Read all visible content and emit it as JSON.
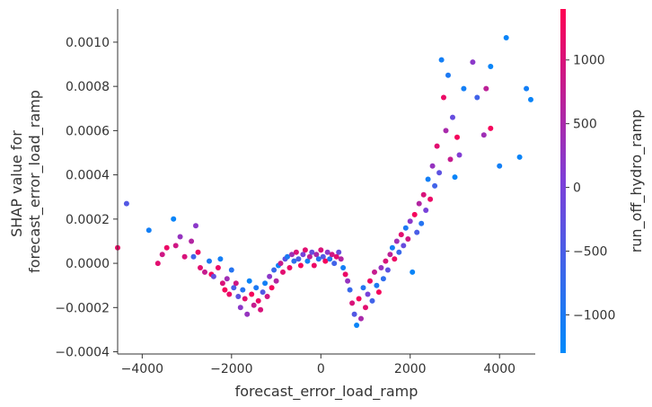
{
  "chart_data": {
    "type": "scatter",
    "title": "",
    "xlabel": "forecast_error_load_ramp",
    "ylabel": [
      "SHAP value for",
      "forecast_error_load_ramp"
    ],
    "xlim": [
      -4550,
      4800
    ],
    "ylim": [
      -0.00041,
      0.00115
    ],
    "xticks": [
      -4000,
      -2000,
      0,
      2000,
      4000
    ],
    "xtick_labels": [
      "−4000",
      "−2000",
      "0",
      "2000",
      "4000"
    ],
    "yticks": [
      -0.0004,
      -0.0002,
      0.0,
      0.0002,
      0.0004,
      0.0006,
      0.0008,
      0.001
    ],
    "ytick_labels": [
      "−0.0004",
      "−0.0002",
      "0.0000",
      "0.0002",
      "0.0004",
      "0.0006",
      "0.0008",
      "0.0010"
    ],
    "grid": false,
    "colorbar": {
      "label": "run_off_hydro_ramp",
      "range": [
        -1300,
        1400
      ],
      "ticks": [
        -1000,
        -500,
        0,
        500,
        1000
      ],
      "tick_labels": [
        "−1000",
        "−500",
        "0",
        "500",
        "1000"
      ],
      "colors": [
        "#008afb",
        "#7d3fd8",
        "#ff0052"
      ]
    },
    "points": [
      {
        "x": -4550,
        "y": 7e-05,
        "c": 1200
      },
      {
        "x": -4350,
        "y": 0.00027,
        "c": -400
      },
      {
        "x": -3850,
        "y": 0.00015,
        "c": -1100
      },
      {
        "x": -3650,
        "y": 0.0,
        "c": 1100
      },
      {
        "x": -3550,
        "y": 4e-05,
        "c": 900
      },
      {
        "x": -3450,
        "y": 7e-05,
        "c": 1200
      },
      {
        "x": -3300,
        "y": 0.0002,
        "c": -1200
      },
      {
        "x": -3250,
        "y": 8e-05,
        "c": 900
      },
      {
        "x": -3150,
        "y": 0.00012,
        "c": 300
      },
      {
        "x": -3050,
        "y": 3e-05,
        "c": 1000
      },
      {
        "x": -2900,
        "y": 0.0001,
        "c": 600
      },
      {
        "x": -2850,
        "y": 3e-05,
        "c": -600
      },
      {
        "x": -2800,
        "y": 0.00017,
        "c": 200
      },
      {
        "x": -2750,
        "y": 5e-05,
        "c": 1200
      },
      {
        "x": -2700,
        "y": -2e-05,
        "c": 1100
      },
      {
        "x": -2600,
        "y": -4e-05,
        "c": 800
      },
      {
        "x": -2500,
        "y": 1e-05,
        "c": -1000
      },
      {
        "x": -2450,
        "y": -5e-05,
        "c": 1300
      },
      {
        "x": -2400,
        "y": -6e-05,
        "c": -200
      },
      {
        "x": -2300,
        "y": -2e-05,
        "c": 1200
      },
      {
        "x": -2250,
        "y": 2e-05,
        "c": -1100
      },
      {
        "x": -2200,
        "y": -9e-05,
        "c": 1000
      },
      {
        "x": -2150,
        "y": -0.00012,
        "c": 1300
      },
      {
        "x": -2100,
        "y": -7e-05,
        "c": 400
      },
      {
        "x": -2050,
        "y": -0.00014,
        "c": 1200
      },
      {
        "x": -2000,
        "y": -3e-05,
        "c": -900
      },
      {
        "x": -1950,
        "y": -0.00011,
        "c": -500
      },
      {
        "x": -1900,
        "y": -9e-05,
        "c": 900
      },
      {
        "x": -1850,
        "y": -0.00015,
        "c": -300
      },
      {
        "x": -1800,
        "y": -0.0002,
        "c": 200
      },
      {
        "x": -1750,
        "y": -0.00012,
        "c": -900
      },
      {
        "x": -1700,
        "y": -0.00016,
        "c": 1100
      },
      {
        "x": -1650,
        "y": -0.00023,
        "c": 300
      },
      {
        "x": -1600,
        "y": -8e-05,
        "c": -1200
      },
      {
        "x": -1550,
        "y": -0.00014,
        "c": 1300
      },
      {
        "x": -1500,
        "y": -0.00019,
        "c": 800
      },
      {
        "x": -1450,
        "y": -0.00011,
        "c": -1000
      },
      {
        "x": -1400,
        "y": -0.00017,
        "c": 1200
      },
      {
        "x": -1350,
        "y": -0.00021,
        "c": 1000
      },
      {
        "x": -1300,
        "y": -0.00013,
        "c": -400
      },
      {
        "x": -1250,
        "y": -9e-05,
        "c": -1100
      },
      {
        "x": -1200,
        "y": -0.00015,
        "c": 900
      },
      {
        "x": -1150,
        "y": -6e-05,
        "c": 200
      },
      {
        "x": -1100,
        "y": -0.00011,
        "c": 1300
      },
      {
        "x": -1050,
        "y": -3e-05,
        "c": -700
      },
      {
        "x": -1000,
        "y": -8e-05,
        "c": 600
      },
      {
        "x": -950,
        "y": -1e-05,
        "c": -1200
      },
      {
        "x": -900,
        "y": 0.0,
        "c": 800
      },
      {
        "x": -850,
        "y": -4e-05,
        "c": 1100
      },
      {
        "x": -800,
        "y": 2e-05,
        "c": -300
      },
      {
        "x": -750,
        "y": 3e-05,
        "c": -1000
      },
      {
        "x": -700,
        "y": -2e-05,
        "c": 1200
      },
      {
        "x": -650,
        "y": 4e-05,
        "c": 400
      },
      {
        "x": -600,
        "y": 1e-05,
        "c": -800
      },
      {
        "x": -550,
        "y": 5e-05,
        "c": 1000
      },
      {
        "x": -500,
        "y": 2e-05,
        "c": -500
      },
      {
        "x": -450,
        "y": -1e-05,
        "c": 1300
      },
      {
        "x": -400,
        "y": 4e-05,
        "c": 0
      },
      {
        "x": -350,
        "y": 6e-05,
        "c": 1100
      },
      {
        "x": -300,
        "y": 1e-05,
        "c": -1100
      },
      {
        "x": -250,
        "y": 3e-05,
        "c": 700
      },
      {
        "x": -200,
        "y": 5e-05,
        "c": -200
      },
      {
        "x": -150,
        "y": -1e-05,
        "c": 1200
      },
      {
        "x": -100,
        "y": 4e-05,
        "c": 500
      },
      {
        "x": -50,
        "y": 2e-05,
        "c": -900
      },
      {
        "x": 0,
        "y": 6e-05,
        "c": 1000
      },
      {
        "x": 50,
        "y": 3e-05,
        "c": -400
      },
      {
        "x": 100,
        "y": 1e-05,
        "c": 1300
      },
      {
        "x": 150,
        "y": 5e-05,
        "c": 200
      },
      {
        "x": 200,
        "y": 2e-05,
        "c": -1000
      },
      {
        "x": 250,
        "y": 4e-05,
        "c": 900
      },
      {
        "x": 300,
        "y": 0.0,
        "c": -600
      },
      {
        "x": 350,
        "y": 3e-05,
        "c": 1100
      },
      {
        "x": 400,
        "y": 5e-05,
        "c": -200
      },
      {
        "x": 450,
        "y": 2e-05,
        "c": 600
      },
      {
        "x": 500,
        "y": -2e-05,
        "c": -1100
      },
      {
        "x": 550,
        "y": -5e-05,
        "c": 1200
      },
      {
        "x": 600,
        "y": -8e-05,
        "c": 300
      },
      {
        "x": 650,
        "y": -0.00012,
        "c": -700
      },
      {
        "x": 700,
        "y": -0.00018,
        "c": 1000
      },
      {
        "x": 750,
        "y": -0.00023,
        "c": -400
      },
      {
        "x": 800,
        "y": -0.00028,
        "c": -1200
      },
      {
        "x": 850,
        "y": -0.00016,
        "c": 1300
      },
      {
        "x": 900,
        "y": -0.00025,
        "c": 500
      },
      {
        "x": 950,
        "y": -0.00011,
        "c": -900
      },
      {
        "x": 1000,
        "y": -0.0002,
        "c": 1100
      },
      {
        "x": 1050,
        "y": -0.00014,
        "c": 0
      },
      {
        "x": 1100,
        "y": -8e-05,
        "c": 1200
      },
      {
        "x": 1150,
        "y": -0.00017,
        "c": -600
      },
      {
        "x": 1200,
        "y": -4e-05,
        "c": 800
      },
      {
        "x": 1250,
        "y": -0.0001,
        "c": -1000
      },
      {
        "x": 1300,
        "y": -0.00013,
        "c": 1300
      },
      {
        "x": 1350,
        "y": -2e-05,
        "c": 300
      },
      {
        "x": 1400,
        "y": -7e-05,
        "c": -800
      },
      {
        "x": 1450,
        "y": 1e-05,
        "c": 1000
      },
      {
        "x": 1500,
        "y": -3e-05,
        "c": -300
      },
      {
        "x": 1550,
        "y": 4e-05,
        "c": 700
      },
      {
        "x": 1600,
        "y": 7e-05,
        "c": -1100
      },
      {
        "x": 1650,
        "y": 2e-05,
        "c": 1200
      },
      {
        "x": 1700,
        "y": 0.0001,
        "c": 400
      },
      {
        "x": 1750,
        "y": 5e-05,
        "c": -700
      },
      {
        "x": 1800,
        "y": 0.00013,
        "c": 1100
      },
      {
        "x": 1850,
        "y": 8e-05,
        "c": -200
      },
      {
        "x": 1900,
        "y": 0.00016,
        "c": -1000
      },
      {
        "x": 1950,
        "y": 0.00011,
        "c": 900
      },
      {
        "x": 2000,
        "y": 0.00019,
        "c": 200
      },
      {
        "x": 2050,
        "y": -4e-05,
        "c": -1200
      },
      {
        "x": 2100,
        "y": 0.00022,
        "c": 1300
      },
      {
        "x": 2150,
        "y": 0.00014,
        "c": -500
      },
      {
        "x": 2200,
        "y": 0.00027,
        "c": 600
      },
      {
        "x": 2250,
        "y": 0.00018,
        "c": -900
      },
      {
        "x": 2300,
        "y": 0.00031,
        "c": 1000
      },
      {
        "x": 2350,
        "y": 0.00024,
        "c": 0
      },
      {
        "x": 2400,
        "y": 0.00038,
        "c": -1100
      },
      {
        "x": 2450,
        "y": 0.00029,
        "c": 1200
      },
      {
        "x": 2500,
        "y": 0.00044,
        "c": 300
      },
      {
        "x": 2550,
        "y": 0.00035,
        "c": -600
      },
      {
        "x": 2600,
        "y": 0.00053,
        "c": 1100
      },
      {
        "x": 2650,
        "y": 0.00041,
        "c": -300
      },
      {
        "x": 2700,
        "y": 0.00092,
        "c": -1100
      },
      {
        "x": 2750,
        "y": 0.00075,
        "c": 1200
      },
      {
        "x": 2800,
        "y": 0.0006,
        "c": 500
      },
      {
        "x": 2850,
        "y": 0.00085,
        "c": -1000
      },
      {
        "x": 2900,
        "y": 0.00047,
        "c": 800
      },
      {
        "x": 2950,
        "y": 0.00066,
        "c": -200
      },
      {
        "x": 3000,
        "y": 0.00039,
        "c": -1200
      },
      {
        "x": 3050,
        "y": 0.00057,
        "c": 1300
      },
      {
        "x": 3100,
        "y": 0.00049,
        "c": 100
      },
      {
        "x": 3200,
        "y": 0.00079,
        "c": -1100
      },
      {
        "x": 3400,
        "y": 0.00091,
        "c": 200
      },
      {
        "x": 3500,
        "y": 0.00075,
        "c": -600
      },
      {
        "x": 3650,
        "y": 0.00058,
        "c": 400
      },
      {
        "x": 3700,
        "y": 0.00079,
        "c": 700
      },
      {
        "x": 3800,
        "y": 0.00089,
        "c": -1200
      },
      {
        "x": 3800,
        "y": 0.00061,
        "c": 1300
      },
      {
        "x": 4000,
        "y": 0.00044,
        "c": -1100
      },
      {
        "x": 4150,
        "y": 0.00102,
        "c": -1200
      },
      {
        "x": 4450,
        "y": 0.00048,
        "c": -1200
      },
      {
        "x": 4600,
        "y": 0.00079,
        "c": -1100
      },
      {
        "x": 4700,
        "y": 0.00074,
        "c": -1200
      }
    ]
  }
}
